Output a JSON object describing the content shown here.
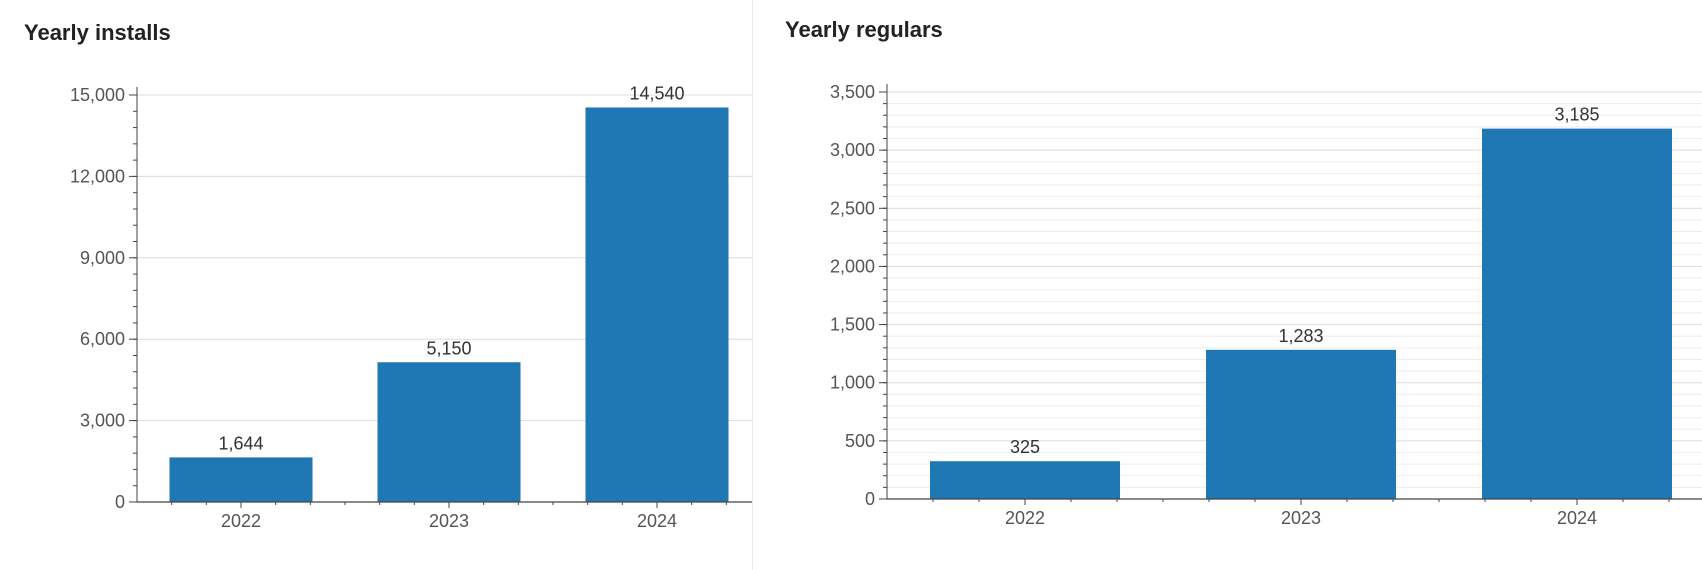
{
  "colors": {
    "bar": "#1f77b4",
    "grid": "#dcdcdc",
    "minor_grid": "#eeeeee",
    "axis": "#444444"
  },
  "charts": [
    {
      "title": "Yearly installs"
    },
    {
      "title": "Yearly regulars"
    }
  ],
  "chart_data": [
    {
      "type": "bar",
      "title": "Yearly installs",
      "categories": [
        "2022",
        "2023",
        "2024"
      ],
      "values": [
        1644,
        5150,
        14540
      ],
      "ylim": [
        0,
        15000
      ],
      "yticks": [
        0,
        3000,
        6000,
        9000,
        12000,
        15000
      ],
      "minor_step": 600,
      "minor_grid": false,
      "grid": true,
      "data_labels": true,
      "xlabel": "",
      "ylabel": ""
    },
    {
      "type": "bar",
      "title": "Yearly regulars",
      "categories": [
        "2022",
        "2023",
        "2024"
      ],
      "values": [
        325,
        1283,
        3185
      ],
      "ylim": [
        0,
        3500
      ],
      "yticks": [
        0,
        500,
        1000,
        1500,
        2000,
        2500,
        3000,
        3500
      ],
      "minor_step": 100,
      "minor_grid": true,
      "grid": true,
      "data_labels": true,
      "xlabel": "",
      "ylabel": ""
    }
  ]
}
